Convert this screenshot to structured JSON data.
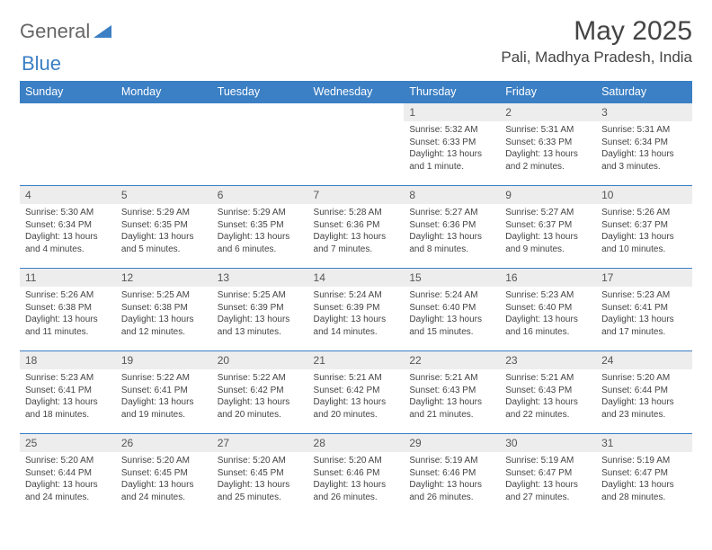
{
  "brand": {
    "general": "General",
    "blue": "Blue"
  },
  "title": "May 2025",
  "location": "Pali, Madhya Pradesh, India",
  "colors": {
    "header_bg": "#3b7fc4",
    "daynum_bg": "#ededed",
    "border": "#3b7fc4"
  },
  "weekdays": [
    "Sunday",
    "Monday",
    "Tuesday",
    "Wednesday",
    "Thursday",
    "Friday",
    "Saturday"
  ],
  "weeks": [
    [
      {
        "n": "",
        "sr": "",
        "ss": "",
        "dl": ""
      },
      {
        "n": "",
        "sr": "",
        "ss": "",
        "dl": ""
      },
      {
        "n": "",
        "sr": "",
        "ss": "",
        "dl": ""
      },
      {
        "n": "",
        "sr": "",
        "ss": "",
        "dl": ""
      },
      {
        "n": "1",
        "sr": "Sunrise: 5:32 AM",
        "ss": "Sunset: 6:33 PM",
        "dl": "Daylight: 13 hours and 1 minute."
      },
      {
        "n": "2",
        "sr": "Sunrise: 5:31 AM",
        "ss": "Sunset: 6:33 PM",
        "dl": "Daylight: 13 hours and 2 minutes."
      },
      {
        "n": "3",
        "sr": "Sunrise: 5:31 AM",
        "ss": "Sunset: 6:34 PM",
        "dl": "Daylight: 13 hours and 3 minutes."
      }
    ],
    [
      {
        "n": "4",
        "sr": "Sunrise: 5:30 AM",
        "ss": "Sunset: 6:34 PM",
        "dl": "Daylight: 13 hours and 4 minutes."
      },
      {
        "n": "5",
        "sr": "Sunrise: 5:29 AM",
        "ss": "Sunset: 6:35 PM",
        "dl": "Daylight: 13 hours and 5 minutes."
      },
      {
        "n": "6",
        "sr": "Sunrise: 5:29 AM",
        "ss": "Sunset: 6:35 PM",
        "dl": "Daylight: 13 hours and 6 minutes."
      },
      {
        "n": "7",
        "sr": "Sunrise: 5:28 AM",
        "ss": "Sunset: 6:36 PM",
        "dl": "Daylight: 13 hours and 7 minutes."
      },
      {
        "n": "8",
        "sr": "Sunrise: 5:27 AM",
        "ss": "Sunset: 6:36 PM",
        "dl": "Daylight: 13 hours and 8 minutes."
      },
      {
        "n": "9",
        "sr": "Sunrise: 5:27 AM",
        "ss": "Sunset: 6:37 PM",
        "dl": "Daylight: 13 hours and 9 minutes."
      },
      {
        "n": "10",
        "sr": "Sunrise: 5:26 AM",
        "ss": "Sunset: 6:37 PM",
        "dl": "Daylight: 13 hours and 10 minutes."
      }
    ],
    [
      {
        "n": "11",
        "sr": "Sunrise: 5:26 AM",
        "ss": "Sunset: 6:38 PM",
        "dl": "Daylight: 13 hours and 11 minutes."
      },
      {
        "n": "12",
        "sr": "Sunrise: 5:25 AM",
        "ss": "Sunset: 6:38 PM",
        "dl": "Daylight: 13 hours and 12 minutes."
      },
      {
        "n": "13",
        "sr": "Sunrise: 5:25 AM",
        "ss": "Sunset: 6:39 PM",
        "dl": "Daylight: 13 hours and 13 minutes."
      },
      {
        "n": "14",
        "sr": "Sunrise: 5:24 AM",
        "ss": "Sunset: 6:39 PM",
        "dl": "Daylight: 13 hours and 14 minutes."
      },
      {
        "n": "15",
        "sr": "Sunrise: 5:24 AM",
        "ss": "Sunset: 6:40 PM",
        "dl": "Daylight: 13 hours and 15 minutes."
      },
      {
        "n": "16",
        "sr": "Sunrise: 5:23 AM",
        "ss": "Sunset: 6:40 PM",
        "dl": "Daylight: 13 hours and 16 minutes."
      },
      {
        "n": "17",
        "sr": "Sunrise: 5:23 AM",
        "ss": "Sunset: 6:41 PM",
        "dl": "Daylight: 13 hours and 17 minutes."
      }
    ],
    [
      {
        "n": "18",
        "sr": "Sunrise: 5:23 AM",
        "ss": "Sunset: 6:41 PM",
        "dl": "Daylight: 13 hours and 18 minutes."
      },
      {
        "n": "19",
        "sr": "Sunrise: 5:22 AM",
        "ss": "Sunset: 6:41 PM",
        "dl": "Daylight: 13 hours and 19 minutes."
      },
      {
        "n": "20",
        "sr": "Sunrise: 5:22 AM",
        "ss": "Sunset: 6:42 PM",
        "dl": "Daylight: 13 hours and 20 minutes."
      },
      {
        "n": "21",
        "sr": "Sunrise: 5:21 AM",
        "ss": "Sunset: 6:42 PM",
        "dl": "Daylight: 13 hours and 20 minutes."
      },
      {
        "n": "22",
        "sr": "Sunrise: 5:21 AM",
        "ss": "Sunset: 6:43 PM",
        "dl": "Daylight: 13 hours and 21 minutes."
      },
      {
        "n": "23",
        "sr": "Sunrise: 5:21 AM",
        "ss": "Sunset: 6:43 PM",
        "dl": "Daylight: 13 hours and 22 minutes."
      },
      {
        "n": "24",
        "sr": "Sunrise: 5:20 AM",
        "ss": "Sunset: 6:44 PM",
        "dl": "Daylight: 13 hours and 23 minutes."
      }
    ],
    [
      {
        "n": "25",
        "sr": "Sunrise: 5:20 AM",
        "ss": "Sunset: 6:44 PM",
        "dl": "Daylight: 13 hours and 24 minutes."
      },
      {
        "n": "26",
        "sr": "Sunrise: 5:20 AM",
        "ss": "Sunset: 6:45 PM",
        "dl": "Daylight: 13 hours and 24 minutes."
      },
      {
        "n": "27",
        "sr": "Sunrise: 5:20 AM",
        "ss": "Sunset: 6:45 PM",
        "dl": "Daylight: 13 hours and 25 minutes."
      },
      {
        "n": "28",
        "sr": "Sunrise: 5:20 AM",
        "ss": "Sunset: 6:46 PM",
        "dl": "Daylight: 13 hours and 26 minutes."
      },
      {
        "n": "29",
        "sr": "Sunrise: 5:19 AM",
        "ss": "Sunset: 6:46 PM",
        "dl": "Daylight: 13 hours and 26 minutes."
      },
      {
        "n": "30",
        "sr": "Sunrise: 5:19 AM",
        "ss": "Sunset: 6:47 PM",
        "dl": "Daylight: 13 hours and 27 minutes."
      },
      {
        "n": "31",
        "sr": "Sunrise: 5:19 AM",
        "ss": "Sunset: 6:47 PM",
        "dl": "Daylight: 13 hours and 28 minutes."
      }
    ]
  ]
}
